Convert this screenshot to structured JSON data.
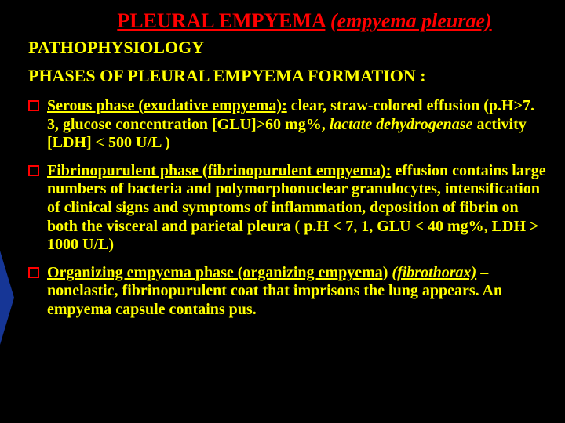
{
  "colors": {
    "background": "#000000",
    "title_color": "#ff0000",
    "body_color": "#ffff00",
    "bullet_border": "#ff0000",
    "accent_blue": "#1a3fb0"
  },
  "typography": {
    "font_family": "Times New Roman",
    "title_fontsize_pt": 20,
    "heading_fontsize_pt": 17,
    "body_fontsize_pt": 15,
    "font_weight": "bold"
  },
  "title": {
    "main": "PLEURAL EMPYEMA",
    "paren": "(empyema pleurae)"
  },
  "heading1": "PATHOPHYSIOLOGY",
  "heading2": "PHASES OF PLEURAL EMPYEMA FORMATION :",
  "bullets": [
    {
      "lead": "Serous phase (exudative empyema):",
      "rest": " clear, straw-colored effusion (p.H>7. 3, glucose concentration [GLU]>60 mg%, ",
      "ital": "lactate dehydrogenase",
      "tail": "  activity [LDH] < 500 U/L )"
    },
    {
      "lead": "Fibrinopurulent phase (fibrinopurulent empyema):",
      "rest": " effusion contains large numbers of bacteria and polymorphonuclear granulocytes, intensification of clinical signs and symptoms of inflammation, deposition of fibrin on both the visceral and parietal pleura ( p.H < 7, 1, GLU < 40 mg%, LDH > 1000 U/L)",
      "ital": "",
      "tail": ""
    },
    {
      "lead": "Organizing empyema phase (organizing empyema)",
      "extra_ital_udl": "(fibrothorax)",
      "rest": " – nonelastic, fibrinopurulent coat that imprisons the lung appears. An empyema capsule contains pus.",
      "ital": "",
      "tail": ""
    }
  ]
}
